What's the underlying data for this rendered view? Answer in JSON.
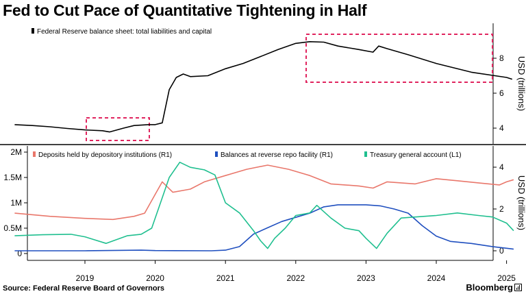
{
  "title": "Fed to Cut Pace of Quantitative Tightening in Half",
  "source": "Source: Federal Reserve Board of Governors",
  "brand": "Bloomberg",
  "chart_data": [
    {
      "type": "line",
      "legend_position": "top-left",
      "ylabel_right": "USD (trillions)",
      "yticks": [
        4,
        6,
        8
      ],
      "series": [
        {
          "name": "Federal Reserve balance sheet: total liabilities and capital",
          "color": "#000000",
          "points": [
            [
              2018.0,
              4.2
            ],
            [
              2018.25,
              4.15
            ],
            [
              2018.5,
              4.08
            ],
            [
              2018.75,
              3.98
            ],
            [
              2019.0,
              3.9
            ],
            [
              2019.25,
              3.85
            ],
            [
              2019.35,
              3.78
            ],
            [
              2019.55,
              4.0
            ],
            [
              2019.7,
              4.15
            ],
            [
              2019.9,
              4.2
            ],
            [
              2020.0,
              4.2
            ],
            [
              2020.1,
              4.3
            ],
            [
              2020.2,
              6.2
            ],
            [
              2020.3,
              6.9
            ],
            [
              2020.4,
              7.1
            ],
            [
              2020.5,
              6.95
            ],
            [
              2020.75,
              7.0
            ],
            [
              2021.0,
              7.4
            ],
            [
              2021.25,
              7.7
            ],
            [
              2021.5,
              8.1
            ],
            [
              2021.75,
              8.5
            ],
            [
              2022.0,
              8.85
            ],
            [
              2022.2,
              8.95
            ],
            [
              2022.4,
              8.92
            ],
            [
              2022.6,
              8.7
            ],
            [
              2022.9,
              8.5
            ],
            [
              2023.1,
              8.35
            ],
            [
              2023.18,
              8.7
            ],
            [
              2023.3,
              8.55
            ],
            [
              2023.6,
              8.2
            ],
            [
              2024.0,
              7.7
            ],
            [
              2024.5,
              7.2
            ],
            [
              2025.0,
              6.9
            ],
            [
              2025.08,
              6.8
            ]
          ]
        }
      ],
      "annotations": [
        "highlight-box-2019",
        "highlight-box-2022-2025"
      ]
    },
    {
      "type": "line",
      "legend_position": "top",
      "ylabel_right": "USD (trillions)",
      "yticks_left": [
        "0",
        "0.5M",
        "1M",
        "1.5M",
        "2M"
      ],
      "yticks_left_values": [
        0,
        0.5,
        1,
        1.5,
        2
      ],
      "yticks_right": [
        0,
        2,
        4
      ],
      "xticks": [
        "2019",
        "2020",
        "2021",
        "2022",
        "2023",
        "2024",
        "2025"
      ],
      "series": [
        {
          "name": "Deposits held by depository institutions (R1)",
          "color": "#e9776b",
          "axis": "right",
          "points": [
            [
              2018.0,
              1.8
            ],
            [
              2018.5,
              1.65
            ],
            [
              2019.0,
              1.55
            ],
            [
              2019.4,
              1.5
            ],
            [
              2019.7,
              1.65
            ],
            [
              2019.85,
              1.8
            ],
            [
              2020.0,
              2.7
            ],
            [
              2020.1,
              3.3
            ],
            [
              2020.25,
              2.8
            ],
            [
              2020.5,
              2.95
            ],
            [
              2020.7,
              3.3
            ],
            [
              2021.0,
              3.6
            ],
            [
              2021.3,
              3.9
            ],
            [
              2021.6,
              4.1
            ],
            [
              2021.9,
              3.9
            ],
            [
              2022.2,
              3.6
            ],
            [
              2022.5,
              3.2
            ],
            [
              2022.9,
              3.1
            ],
            [
              2023.1,
              3.0
            ],
            [
              2023.3,
              3.3
            ],
            [
              2023.7,
              3.2
            ],
            [
              2024.0,
              3.45
            ],
            [
              2024.3,
              3.35
            ],
            [
              2024.6,
              3.25
            ],
            [
              2024.9,
              3.15
            ],
            [
              2025.0,
              3.3
            ],
            [
              2025.1,
              3.4
            ]
          ]
        },
        {
          "name": "Balances at reverse repo facility (R1)",
          "color": "#1f4fbf",
          "axis": "right",
          "points": [
            [
              2018.0,
              0.0
            ],
            [
              2019.0,
              0.0
            ],
            [
              2019.8,
              0.03
            ],
            [
              2020.0,
              0.01
            ],
            [
              2020.8,
              0.0
            ],
            [
              2021.0,
              0.03
            ],
            [
              2021.2,
              0.2
            ],
            [
              2021.4,
              0.8
            ],
            [
              2021.6,
              1.1
            ],
            [
              2021.8,
              1.4
            ],
            [
              2022.0,
              1.6
            ],
            [
              2022.2,
              1.8
            ],
            [
              2022.4,
              2.1
            ],
            [
              2022.6,
              2.2
            ],
            [
              2022.8,
              2.2
            ],
            [
              2023.0,
              2.2
            ],
            [
              2023.2,
              2.15
            ],
            [
              2023.4,
              2.0
            ],
            [
              2023.6,
              1.8
            ],
            [
              2023.8,
              1.2
            ],
            [
              2024.0,
              0.7
            ],
            [
              2024.2,
              0.45
            ],
            [
              2024.5,
              0.35
            ],
            [
              2024.8,
              0.2
            ],
            [
              2025.0,
              0.12
            ],
            [
              2025.1,
              0.08
            ]
          ]
        },
        {
          "name": "Treasury general account (L1)",
          "color": "#1fbf8f",
          "axis": "left",
          "points": [
            [
              2018.0,
              0.35
            ],
            [
              2018.4,
              0.37
            ],
            [
              2018.8,
              0.38
            ],
            [
              2019.0,
              0.33
            ],
            [
              2019.3,
              0.2
            ],
            [
              2019.6,
              0.35
            ],
            [
              2019.8,
              0.38
            ],
            [
              2019.95,
              0.5
            ],
            [
              2020.1,
              1.1
            ],
            [
              2020.2,
              1.5
            ],
            [
              2020.35,
              1.8
            ],
            [
              2020.5,
              1.7
            ],
            [
              2020.7,
              1.65
            ],
            [
              2020.85,
              1.55
            ],
            [
              2021.0,
              1.0
            ],
            [
              2021.2,
              0.8
            ],
            [
              2021.4,
              0.45
            ],
            [
              2021.5,
              0.25
            ],
            [
              2021.6,
              0.1
            ],
            [
              2021.7,
              0.3
            ],
            [
              2021.85,
              0.5
            ],
            [
              2022.0,
              0.75
            ],
            [
              2022.2,
              0.8
            ],
            [
              2022.3,
              0.95
            ],
            [
              2022.5,
              0.7
            ],
            [
              2022.7,
              0.5
            ],
            [
              2022.9,
              0.45
            ],
            [
              2023.0,
              0.3
            ],
            [
              2023.15,
              0.1
            ],
            [
              2023.3,
              0.4
            ],
            [
              2023.5,
              0.7
            ],
            [
              2023.7,
              0.72
            ],
            [
              2024.0,
              0.75
            ],
            [
              2024.3,
              0.8
            ],
            [
              2024.6,
              0.75
            ],
            [
              2024.8,
              0.72
            ],
            [
              2025.0,
              0.6
            ],
            [
              2025.1,
              0.45
            ]
          ]
        }
      ]
    }
  ]
}
